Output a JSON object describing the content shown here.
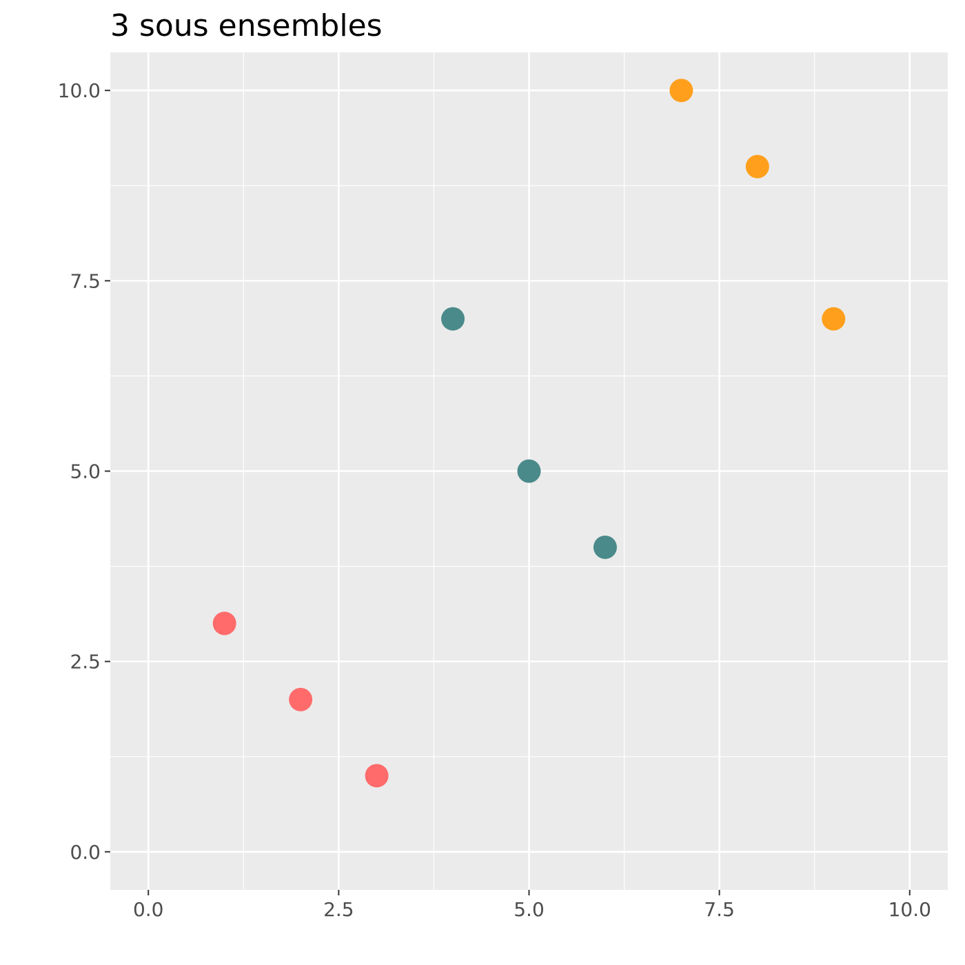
{
  "chart_data": {
    "type": "scatter",
    "title": "3 sous ensembles",
    "xlabel": "",
    "ylabel": "",
    "xlim": [
      -0.5,
      10.5
    ],
    "ylim": [
      -0.5,
      10.5
    ],
    "x_ticks": [
      0,
      2.5,
      5,
      7.5,
      10
    ],
    "y_ticks": [
      0,
      2.5,
      5,
      7.5,
      10
    ],
    "x_tick_labels": [
      "0.0",
      "2.5",
      "5.0",
      "7.5",
      "10.0"
    ],
    "y_tick_labels": [
      "0.0",
      "2.5",
      "5.0",
      "7.5",
      "10.0"
    ],
    "grid": true,
    "background_color": "#EBEBEB",
    "grid_color": "#FFFFFF",
    "series": [
      {
        "color": "#FF6B6B",
        "points": [
          [
            1,
            3
          ],
          [
            2,
            2
          ],
          [
            3,
            1
          ]
        ]
      },
      {
        "color": "#4A8A8A",
        "points": [
          [
            4,
            7
          ],
          [
            5,
            5
          ],
          [
            6,
            4
          ]
        ]
      },
      {
        "color": "#FF9F1C",
        "points": [
          [
            7,
            10
          ],
          [
            8,
            9
          ],
          [
            9,
            7
          ]
        ]
      }
    ]
  }
}
